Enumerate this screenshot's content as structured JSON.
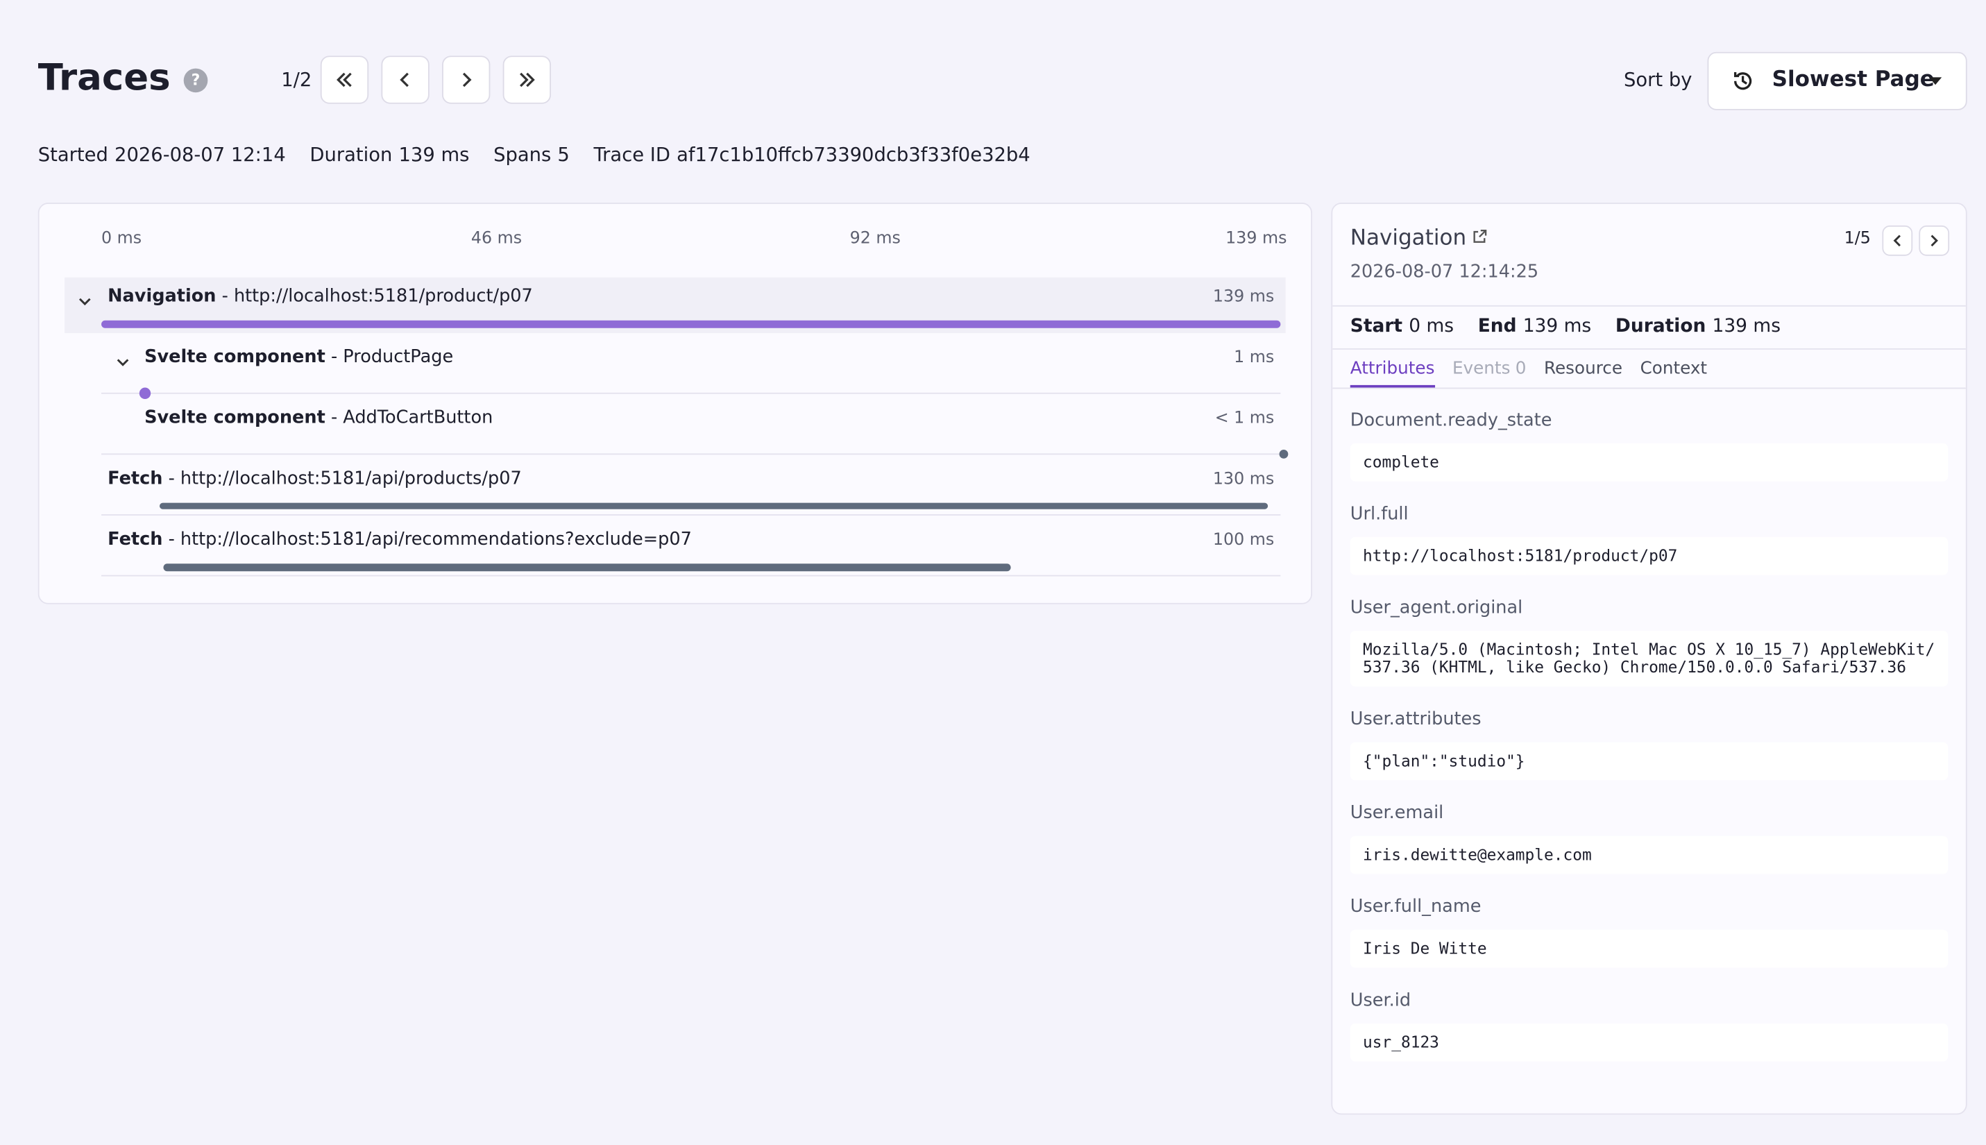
{
  "header": {
    "title": "Traces",
    "help": "?",
    "page": "1/2",
    "sort_label": "Sort by",
    "sort_value": "Slowest Page"
  },
  "meta": [
    {
      "label": "Started",
      "value": "2026-08-07 12:14"
    },
    {
      "label": "Duration",
      "value": "139 ms"
    },
    {
      "label": "Spans",
      "value": "5"
    },
    {
      "label": "Trace ID",
      "value": "af17c1b10ffcb73390dcb3f33f0e32b4"
    }
  ],
  "timeline": {
    "ticks": [
      "0 ms",
      "46 ms",
      "92 ms",
      "139 ms"
    ],
    "spans": [
      {
        "kind": "Navigation",
        "name": "http://localhost:5181/product/p07",
        "duration": "139 ms"
      },
      {
        "kind": "Svelte component",
        "name": "ProductPage",
        "duration": "1 ms"
      },
      {
        "kind": "Svelte component",
        "name": "AddToCartButton",
        "duration": "< 1 ms"
      },
      {
        "kind": "Fetch",
        "name": "http://localhost:5181/api/products/p07",
        "duration": "130 ms"
      },
      {
        "kind": "Fetch",
        "name": "http://localhost:5181/api/recommendations?exclude=p07",
        "duration": "100 ms"
      }
    ]
  },
  "detail": {
    "title": "Navigation",
    "pager": "1/5",
    "time": "2026-08-07 12:14:25",
    "stats": [
      {
        "label": "Start",
        "value": "0 ms"
      },
      {
        "label": "End",
        "value": "139 ms"
      },
      {
        "label": "Duration",
        "value": "139 ms"
      }
    ],
    "tabs": [
      {
        "label": "Attributes"
      },
      {
        "label": "Events",
        "count": "0"
      },
      {
        "label": "Resource"
      },
      {
        "label": "Context"
      }
    ],
    "attributes": [
      {
        "key": "Document.ready_state",
        "value": "complete"
      },
      {
        "key": "Url.full",
        "value": "http://localhost:5181/product/p07"
      },
      {
        "key": "User_agent.original",
        "value": "Mozilla/5.0 (Macintosh; Intel Mac OS X 10_15_7) AppleWebKit/537.36 (KHTML, like Gecko) Chrome/150.0.0.0 Safari/537.36"
      },
      {
        "key": "User.attributes",
        "value": "{\"plan\":\"studio\"}"
      },
      {
        "key": "User.email",
        "value": "iris.dewitte@example.com"
      },
      {
        "key": "User.full_name",
        "value": "Iris De Witte"
      },
      {
        "key": "User.id",
        "value": "usr_8123"
      }
    ]
  }
}
